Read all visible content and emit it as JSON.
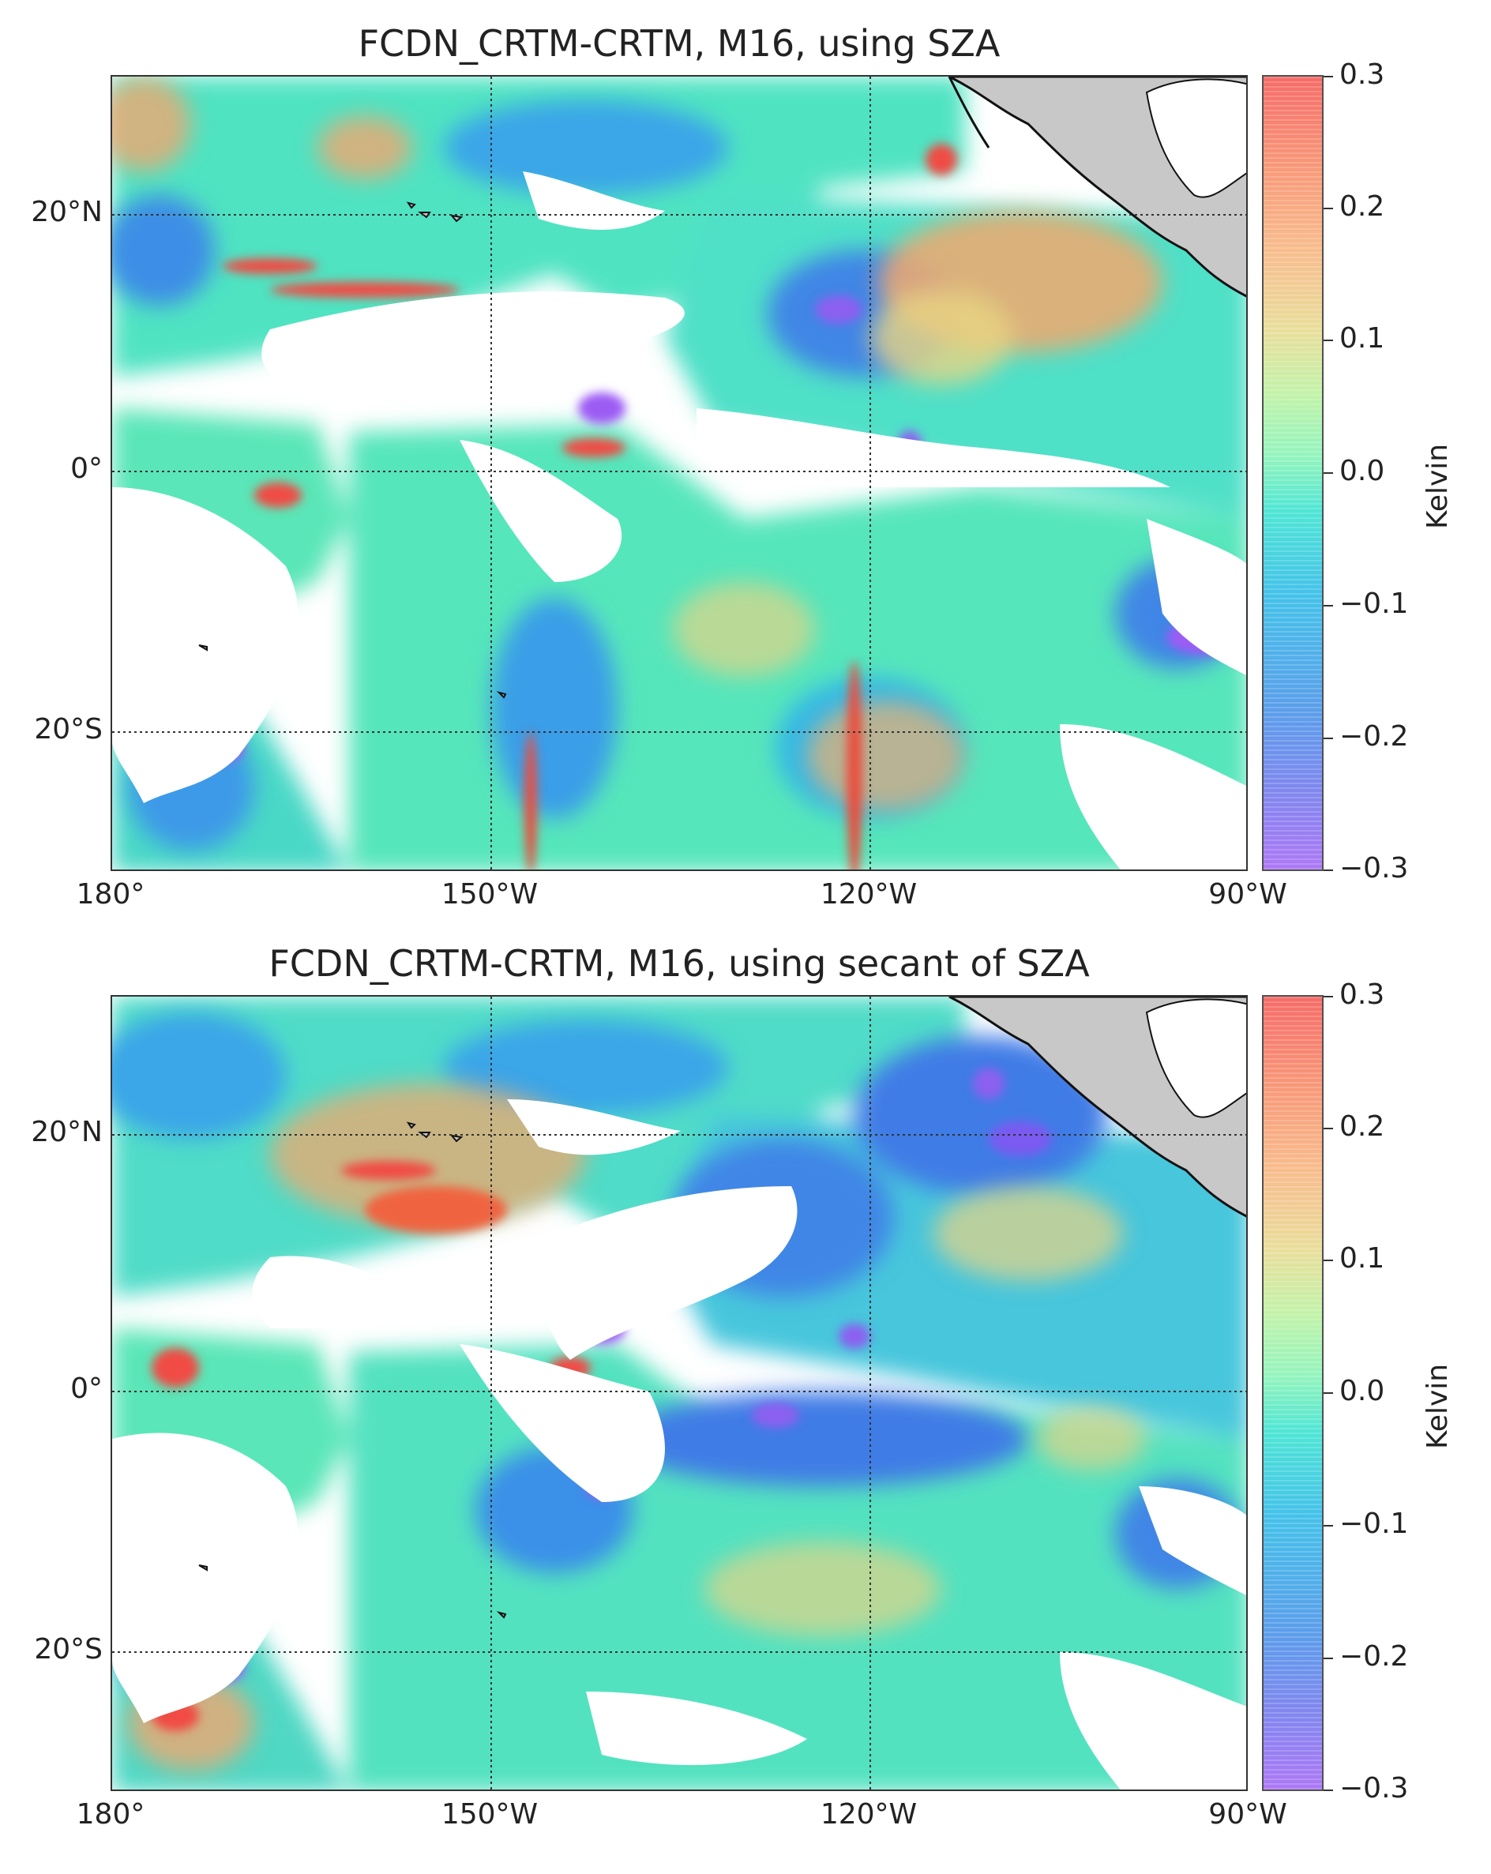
{
  "panels": [
    {
      "title": "FCDN_CRTM-CRTM, M16, using SZA",
      "colorbar_label": "Kelvin"
    },
    {
      "title": "FCDN_CRTM-CRTM, M16, using secant of SZA",
      "colorbar_label": "Kelvin"
    }
  ],
  "axes": {
    "lat_labels": [
      "20°N",
      "0°",
      "20°S"
    ],
    "lon_labels": [
      "180°",
      "150°W",
      "120°W",
      "90°W"
    ],
    "lat_range": [
      -30,
      30
    ],
    "lon_range": [
      -180,
      -90
    ]
  },
  "colorbar": {
    "ticks": [
      "0.3",
      "0.2",
      "0.1",
      "0.0",
      "−0.1",
      "−0.2",
      "−0.3"
    ],
    "range": [
      -0.3,
      0.3
    ],
    "colormap": "rainbow"
  },
  "colors": {
    "land": "#c8c8c8",
    "no_data": "#ffffff",
    "gridline": "#333333"
  }
}
